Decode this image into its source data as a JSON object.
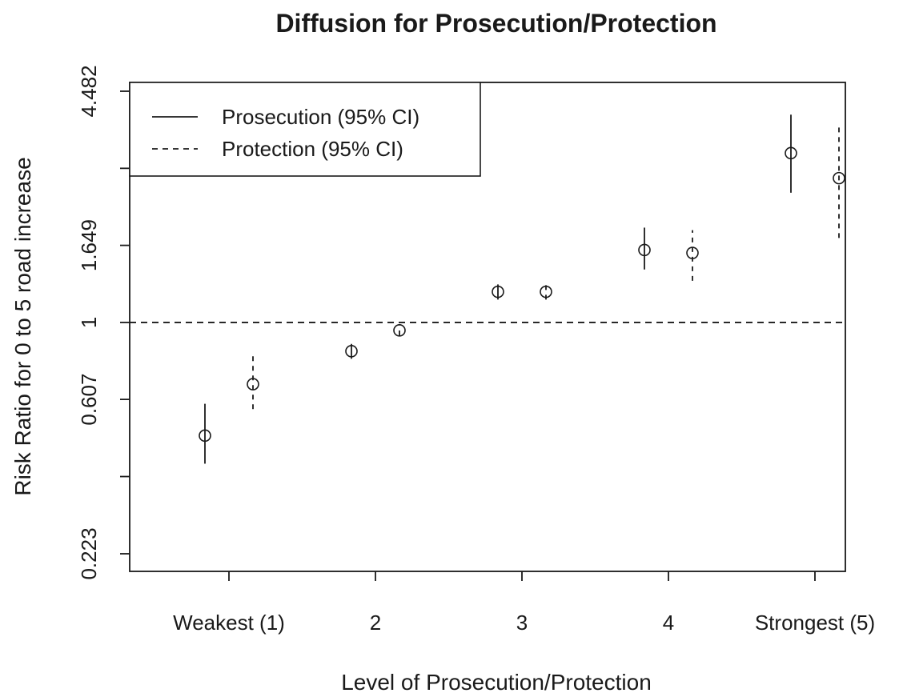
{
  "chart_data": {
    "type": "scatter",
    "title": "Diffusion for Prosecution/Protection",
    "xlabel": "Level of Prosecution/Protection",
    "ylabel": "Risk Ratio for 0 to 5 road increase",
    "categories": [
      "Weakest (1)",
      "2",
      "3",
      "4",
      "Strongest (5)"
    ],
    "y_scale": "log",
    "ylim": [
      0.2,
      5.2
    ],
    "y_ticks": [
      0.223,
      0.368,
      0.607,
      1,
      1.649,
      2.718,
      4.482
    ],
    "y_tick_labels": [
      "0.223",
      "",
      "0.607",
      "1",
      "1.649",
      "",
      "4.482"
    ],
    "reference_line": 1,
    "grid": false,
    "legend_position": "top-left",
    "series": [
      {
        "name": "Prosecution (95% CI)",
        "line_style": "solid",
        "offset": "left",
        "values": [
          0.48,
          0.83,
          1.22,
          1.6,
          3.0
        ],
        "ci_lower": [
          0.4,
          0.79,
          1.16,
          1.41,
          2.32
        ],
        "ci_upper": [
          0.59,
          0.87,
          1.28,
          1.85,
          3.85
        ]
      },
      {
        "name": "Protection (95% CI)",
        "line_style": "dashed",
        "offset": "right",
        "values": [
          0.67,
          0.95,
          1.22,
          1.57,
          2.55
        ],
        "ci_lower": [
          0.57,
          0.92,
          1.16,
          1.31,
          1.73
        ],
        "ci_upper": [
          0.81,
          0.98,
          1.28,
          1.82,
          3.6
        ]
      }
    ]
  }
}
